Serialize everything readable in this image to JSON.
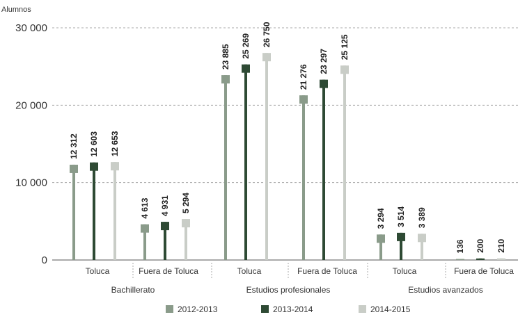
{
  "chart_data": {
    "type": "bar",
    "ylabel": "Alumnos",
    "ylim": [
      0,
      30000
    ],
    "yticks": [
      0,
      10000,
      20000,
      30000
    ],
    "ytick_labels": [
      "0",
      "10 000",
      "20 000",
      "30 000"
    ],
    "grid": "horizontal dashed",
    "groups": [
      {
        "name": "Bachillerato",
        "categories": [
          "Toluca",
          "Fuera de Toluca"
        ]
      },
      {
        "name": "Estudios profesionales",
        "categories": [
          "Toluca",
          "Fuera de Toluca"
        ]
      },
      {
        "name": "Estudios avanzados",
        "categories": [
          "Toluca",
          "Fuera de Toluca"
        ]
      }
    ],
    "series": [
      {
        "name": "2012-2013",
        "color": "#8a9b8a",
        "values": [
          12312,
          4613,
          23885,
          21276,
          3294,
          136
        ],
        "labels": [
          "12 312",
          "4 613",
          "23 885",
          "21 276",
          "3 294",
          "136"
        ]
      },
      {
        "name": "2013-2014",
        "color": "#2e4a34",
        "values": [
          12603,
          4931,
          25269,
          23297,
          3514,
          200
        ],
        "labels": [
          "12 603",
          "4 931",
          "25 269",
          "23 297",
          "3 514",
          "200"
        ]
      },
      {
        "name": "2014-2015",
        "color": "#c9cdc7",
        "values": [
          12653,
          5294,
          26750,
          25125,
          3389,
          210
        ],
        "labels": [
          "12 653",
          "5 294",
          "26 750",
          "25 125",
          "3 389",
          "210"
        ]
      }
    ],
    "legend_position": "bottom"
  }
}
